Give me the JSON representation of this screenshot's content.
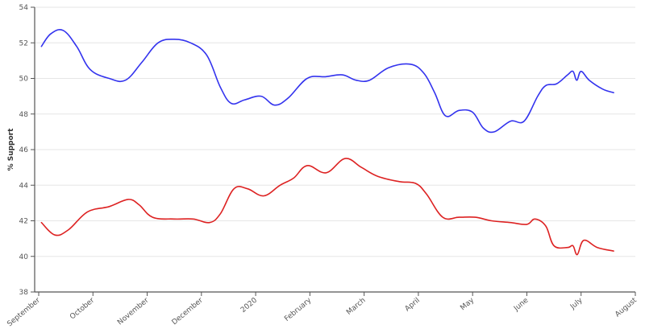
{
  "chart_data": {
    "type": "line",
    "ylabel": "% Support",
    "ylim": [
      38,
      54
    ],
    "yticks": [
      38,
      40,
      42,
      44,
      46,
      48,
      50,
      52,
      54
    ],
    "grid": true,
    "xlim": [
      0,
      11
    ],
    "xticks": [
      {
        "label": "September",
        "x": 0
      },
      {
        "label": "October",
        "x": 1
      },
      {
        "label": "November",
        "x": 2
      },
      {
        "label": "December",
        "x": 3
      },
      {
        "label": "2020",
        "x": 4
      },
      {
        "label": "February",
        "x": 5
      },
      {
        "label": "March",
        "x": 6
      },
      {
        "label": "April",
        "x": 7
      },
      {
        "label": "May",
        "x": 8
      },
      {
        "label": "June",
        "x": 9
      },
      {
        "label": "July",
        "x": 10
      },
      {
        "label": "August",
        "x": 11
      }
    ],
    "series": [
      {
        "color": "#3333ee",
        "points": [
          [
            0.05,
            51.8
          ],
          [
            0.22,
            52.5
          ],
          [
            0.45,
            52.7
          ],
          [
            0.7,
            51.8
          ],
          [
            0.95,
            50.5
          ],
          [
            1.3,
            50.0
          ],
          [
            1.6,
            49.9
          ],
          [
            1.9,
            50.9
          ],
          [
            2.2,
            52.0
          ],
          [
            2.5,
            52.2
          ],
          [
            2.8,
            52.0
          ],
          [
            3.1,
            51.3
          ],
          [
            3.35,
            49.5
          ],
          [
            3.55,
            48.6
          ],
          [
            3.8,
            48.8
          ],
          [
            4.1,
            49.0
          ],
          [
            4.35,
            48.5
          ],
          [
            4.6,
            48.9
          ],
          [
            4.95,
            50.0
          ],
          [
            5.3,
            50.1
          ],
          [
            5.6,
            50.2
          ],
          [
            5.85,
            49.9
          ],
          [
            6.1,
            49.9
          ],
          [
            6.45,
            50.6
          ],
          [
            6.85,
            50.8
          ],
          [
            7.1,
            50.3
          ],
          [
            7.3,
            49.2
          ],
          [
            7.5,
            47.9
          ],
          [
            7.75,
            48.2
          ],
          [
            8.0,
            48.1
          ],
          [
            8.2,
            47.2
          ],
          [
            8.4,
            47.0
          ],
          [
            8.7,
            47.6
          ],
          [
            8.95,
            47.6
          ],
          [
            9.2,
            49.0
          ],
          [
            9.35,
            49.6
          ],
          [
            9.55,
            49.7
          ],
          [
            9.75,
            50.2
          ],
          [
            9.85,
            50.4
          ],
          [
            9.92,
            49.9
          ],
          [
            10.0,
            50.4
          ],
          [
            10.15,
            49.9
          ],
          [
            10.4,
            49.4
          ],
          [
            10.6,
            49.2
          ]
        ]
      },
      {
        "color": "#dd2222",
        "points": [
          [
            0.05,
            41.9
          ],
          [
            0.3,
            41.2
          ],
          [
            0.55,
            41.5
          ],
          [
            0.9,
            42.5
          ],
          [
            1.3,
            42.8
          ],
          [
            1.65,
            43.2
          ],
          [
            1.85,
            42.9
          ],
          [
            2.1,
            42.2
          ],
          [
            2.5,
            42.1
          ],
          [
            2.85,
            42.1
          ],
          [
            3.15,
            41.9
          ],
          [
            3.35,
            42.4
          ],
          [
            3.6,
            43.8
          ],
          [
            3.85,
            43.8
          ],
          [
            4.15,
            43.4
          ],
          [
            4.45,
            44.0
          ],
          [
            4.7,
            44.4
          ],
          [
            4.95,
            45.1
          ],
          [
            5.3,
            44.7
          ],
          [
            5.65,
            45.5
          ],
          [
            5.95,
            45.0
          ],
          [
            6.25,
            44.5
          ],
          [
            6.65,
            44.2
          ],
          [
            6.95,
            44.1
          ],
          [
            7.15,
            43.5
          ],
          [
            7.45,
            42.2
          ],
          [
            7.75,
            42.2
          ],
          [
            8.05,
            42.2
          ],
          [
            8.35,
            42.0
          ],
          [
            8.7,
            41.9
          ],
          [
            9.0,
            41.8
          ],
          [
            9.15,
            42.1
          ],
          [
            9.35,
            41.7
          ],
          [
            9.5,
            40.6
          ],
          [
            9.75,
            40.5
          ],
          [
            9.85,
            40.6
          ],
          [
            9.93,
            40.1
          ],
          [
            10.05,
            40.9
          ],
          [
            10.3,
            40.5
          ],
          [
            10.6,
            40.3
          ]
        ]
      }
    ]
  }
}
